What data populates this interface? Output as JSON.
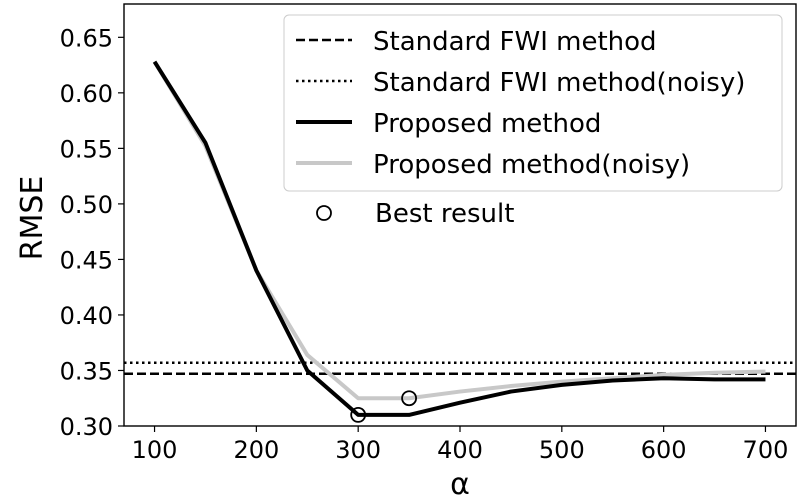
{
  "chart_data": {
    "type": "line",
    "xlabel": "α",
    "ylabel": "RMSE",
    "xlim": [
      70,
      730
    ],
    "ylim": [
      0.3,
      0.68
    ],
    "x_ticks": [
      100,
      200,
      300,
      400,
      500,
      600,
      700
    ],
    "y_ticks": [
      0.3,
      0.35,
      0.4,
      0.45,
      0.5,
      0.55,
      0.6,
      0.65
    ],
    "y_tick_labels": [
      "0.30",
      "0.35",
      "0.40",
      "0.45",
      "0.50",
      "0.55",
      "0.60",
      "0.65"
    ],
    "grid": false,
    "legend_position": "top-right",
    "hlines": [
      {
        "name": "Standard FWI method",
        "y": 0.347,
        "style": "dashed",
        "color": "#000000"
      },
      {
        "name": "Standard FWI method(noisy)",
        "y": 0.357,
        "style": "dotted",
        "color": "#000000"
      }
    ],
    "series": [
      {
        "name": "Proposed method",
        "color": "#000000",
        "x": [
          100,
          150,
          200,
          250,
          300,
          350,
          400,
          450,
          500,
          550,
          600,
          650,
          700
        ],
        "y": [
          0.628,
          0.555,
          0.44,
          0.35,
          0.31,
          0.31,
          0.321,
          0.331,
          0.337,
          0.341,
          0.343,
          0.342,
          0.342
        ]
      },
      {
        "name": "Proposed method(noisy)",
        "color": "#c8c8c8",
        "x": [
          100,
          150,
          200,
          250,
          300,
          350,
          400,
          450,
          500,
          550,
          600,
          650,
          700
        ],
        "y": [
          0.628,
          0.552,
          0.44,
          0.364,
          0.325,
          0.325,
          0.331,
          0.336,
          0.34,
          0.343,
          0.346,
          0.348,
          0.349
        ]
      }
    ],
    "best_points": [
      {
        "series": "Proposed method",
        "x": 300,
        "y": 0.31
      },
      {
        "series": "Proposed method(noisy)",
        "x": 350,
        "y": 0.325
      }
    ],
    "best_label": "Best result"
  }
}
